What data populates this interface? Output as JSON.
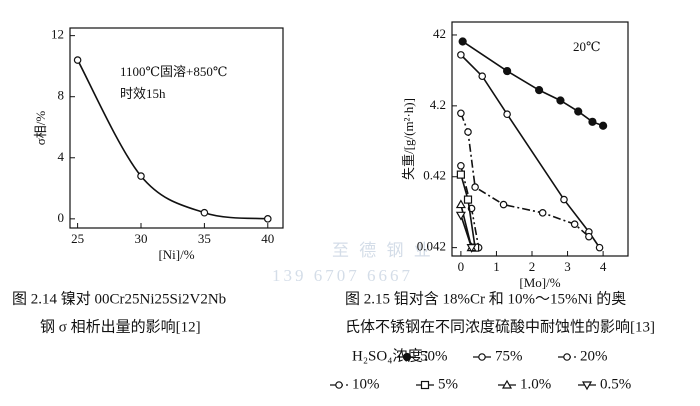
{
  "chart_data": [
    {
      "type": "line",
      "xlabel": "[Ni]/%",
      "ylabel": "σ相/%",
      "annotations": [
        "1100℃固溶+850℃",
        "时效15h"
      ],
      "caption": [
        "图 2.14  镍对 00Cr25Ni25Si2V2Nb",
        "钢 σ 相析出量的影响[12]"
      ],
      "xlim": [
        24.4,
        41.2
      ],
      "ylim": [
        -0.6,
        12.5
      ],
      "xticks": [
        25,
        30,
        35,
        40
      ],
      "yticks": [
        0,
        4,
        8,
        12
      ],
      "series": [
        {
          "x": [
            25,
            30,
            35,
            40
          ],
          "values": [
            10.4,
            2.8,
            0.4,
            0
          ],
          "color": "#111111",
          "marker": "open-circle",
          "dash": "solid"
        }
      ]
    },
    {
      "type": "line",
      "xlabel": "[Mo]/%",
      "ylabel": "失重/[g/(m²·h)]",
      "log_y": true,
      "annotations": [
        "20℃"
      ],
      "caption": [
        "图 2.15  钼对含 18%Cr 和 10%～15%Ni 的奥",
        "氏体不锈钢在不同浓度硫酸中耐蚀性的影响[13]"
      ],
      "legend_title": "H₂SO₄浓度：",
      "xlim": [
        -0.25,
        4.7
      ],
      "ylim": [
        0.032,
        64
      ],
      "xticks": [
        0,
        1,
        2,
        3,
        4
      ],
      "yticks": [
        0.042,
        0.42,
        4.2,
        42
      ],
      "series": [
        {
          "name": "50%",
          "color": "#111111",
          "marker": "filled-circle",
          "dash": "solid",
          "x": [
            0.05,
            1.3,
            2.2,
            2.8,
            3.3,
            3.7,
            4.0
          ],
          "values": [
            34,
            13,
            7,
            5,
            3.5,
            2.5,
            2.2
          ]
        },
        {
          "name": "75%",
          "color": "#111111",
          "marker": "open-circle",
          "dash": "solid",
          "x": [
            0,
            0.6,
            1.3,
            2.9,
            3.6,
            3.9
          ],
          "values": [
            22,
            11,
            3.2,
            0.2,
            0.07,
            0.042
          ]
        },
        {
          "name": "20%",
          "color": "#111111",
          "marker": "open-circle",
          "dash": "dashdot",
          "x": [
            0,
            0.2,
            0.4,
            1.2,
            2.3,
            3.2,
            3.6
          ],
          "values": [
            3.3,
            1.8,
            0.3,
            0.17,
            0.13,
            0.09,
            0.06
          ]
        },
        {
          "name": "10%",
          "color": "#111111",
          "marker": "open-circle",
          "dash": "dashdotdot",
          "x": [
            0,
            0.3,
            0.5
          ],
          "values": [
            0.6,
            0.15,
            0.042
          ]
        },
        {
          "name": "5%",
          "color": "#111111",
          "marker": "square",
          "dash": "solid",
          "x": [
            0,
            0.2,
            0.4
          ],
          "values": [
            0.45,
            0.2,
            0.042
          ]
        },
        {
          "name": "1.0%",
          "color": "#111111",
          "marker": "triangle",
          "dash": "solid",
          "x": [
            0,
            0.3
          ],
          "values": [
            0.17,
            0.042
          ]
        },
        {
          "name": "0.5%",
          "color": "#111111",
          "marker": "inverted-triangle",
          "dash": "solid",
          "x": [
            0,
            0.3
          ],
          "values": [
            0.12,
            0.042
          ]
        }
      ]
    }
  ],
  "watermark": [
    "至 德 钢 业",
    "139 6707 6667"
  ]
}
